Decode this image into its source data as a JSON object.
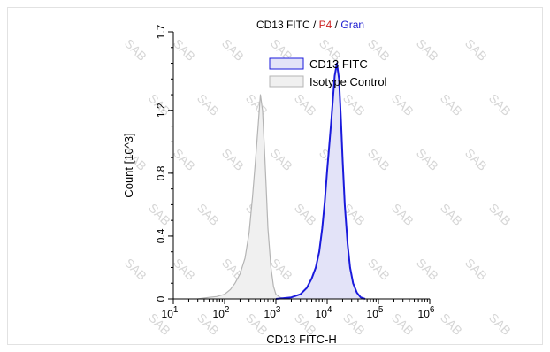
{
  "title": {
    "parts": [
      {
        "text": "CD13 FITC",
        "color": "#000000"
      },
      {
        "text": " / ",
        "color": "#000000"
      },
      {
        "text": "P4",
        "color": "#cc2222"
      },
      {
        "text": " / ",
        "color": "#000000"
      },
      {
        "text": "Gran",
        "color": "#1a1ad0"
      }
    ]
  },
  "watermark": "SAB",
  "colors": {
    "sample_line": "#1a1adc",
    "sample_fill": "#e3e3f8",
    "control_line": "#b4b4b4",
    "control_fill": "#f0f0f0"
  },
  "chart_data": {
    "type": "area",
    "title": "CD13 FITC / P4 / Gran",
    "xlabel": "CD13 FITC-H",
    "ylabel": "Count",
    "ylabel_unit": "[10^3]",
    "xscale": "log",
    "xlim": [
      10,
      1000000
    ],
    "ylim": [
      0,
      1.7
    ],
    "xticks": [
      {
        "value": 10,
        "base": "10",
        "exp": "1"
      },
      {
        "value": 100,
        "base": "10",
        "exp": "2"
      },
      {
        "value": 1000,
        "base": "10",
        "exp": "3"
      },
      {
        "value": 10000,
        "base": "10",
        "exp": "4"
      },
      {
        "value": 100000,
        "base": "10",
        "exp": "5"
      },
      {
        "value": 1000000,
        "base": "10",
        "exp": "6"
      }
    ],
    "yticks": [
      "0",
      "0.4",
      "0.8",
      "1.2",
      "1.7"
    ],
    "ytick_values": [
      0,
      0.4,
      0.8,
      1.2,
      1.7
    ],
    "legend_position": "top-right",
    "series": [
      {
        "name": "CD13 FITC",
        "points": [
          [
            1000,
            0
          ],
          [
            2000,
            0.01
          ],
          [
            3000,
            0.03
          ],
          [
            4000,
            0.07
          ],
          [
            5000,
            0.13
          ],
          [
            6000,
            0.2
          ],
          [
            7000,
            0.3
          ],
          [
            8000,
            0.45
          ],
          [
            9000,
            0.62
          ],
          [
            10000,
            0.82
          ],
          [
            11000,
            0.98
          ],
          [
            12000,
            1.13
          ],
          [
            13000,
            1.28
          ],
          [
            14000,
            1.42
          ],
          [
            15500,
            1.5
          ],
          [
            17000,
            1.4
          ],
          [
            18500,
            1.15
          ],
          [
            20000,
            0.88
          ],
          [
            22000,
            0.6
          ],
          [
            25000,
            0.35
          ],
          [
            28000,
            0.2
          ],
          [
            32000,
            0.1
          ],
          [
            38000,
            0.04
          ],
          [
            45000,
            0.01
          ],
          [
            55000,
            0
          ]
        ]
      },
      {
        "name": "Isotype Control",
        "points": [
          [
            30,
            0
          ],
          [
            50,
            0.01
          ],
          [
            70,
            0.015
          ],
          [
            100,
            0.03
          ],
          [
            130,
            0.06
          ],
          [
            160,
            0.1
          ],
          [
            200,
            0.16
          ],
          [
            250,
            0.26
          ],
          [
            300,
            0.42
          ],
          [
            350,
            0.65
          ],
          [
            400,
            0.88
          ],
          [
            450,
            1.1
          ],
          [
            500,
            1.3
          ],
          [
            550,
            1.2
          ],
          [
            600,
            0.95
          ],
          [
            650,
            0.7
          ],
          [
            700,
            0.45
          ],
          [
            800,
            0.2
          ],
          [
            900,
            0.08
          ],
          [
            1000,
            0.03
          ],
          [
            1200,
            0.01
          ],
          [
            1500,
            0
          ]
        ]
      }
    ]
  }
}
